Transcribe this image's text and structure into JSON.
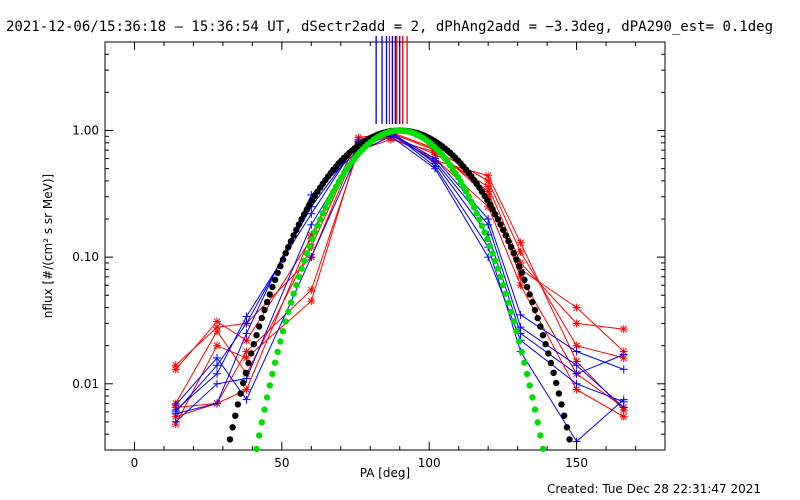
{
  "header": {
    "title": "2021-12-06/15:36:18 – 15:36:54 UT, dSectr2add = 2, dPhAng2add = −3.3deg, dPA290_est=  0.1deg"
  },
  "footer": {
    "created": "Created: Tue Dec 28 22:31:47 2021"
  },
  "chart_data": {
    "type": "line",
    "xlabel": "PA [deg]",
    "ylabel": "nflux [#/(cm² s sr MeV)]",
    "xlim": [
      -10,
      180
    ],
    "ylim": [
      0.003,
      5.0
    ],
    "yscale": "log",
    "x_ticks": [
      0,
      50,
      100,
      150
    ],
    "x_tick_labels": [
      "0",
      "50",
      "100",
      "150"
    ],
    "y_ticks": [
      0.01,
      0.1,
      1.0
    ],
    "y_tick_labels": [
      "0.01",
      "0.10",
      "1.00"
    ],
    "grid": false,
    "colors": {
      "red": "#ff0000",
      "blue": "#0000ff",
      "black": "#000000",
      "green": "#00e000"
    },
    "x_bins": [
      14,
      28,
      38,
      60,
      76,
      87,
      102,
      120,
      131,
      150,
      166
    ],
    "series": [
      {
        "color": "red",
        "marker": "asterisk",
        "values": [
          0.0065,
          0.007,
          0.009,
          0.15,
          0.85,
          0.97,
          0.72,
          0.3,
          0.08,
          0.04,
          0.018
        ]
      },
      {
        "color": "red",
        "marker": "asterisk",
        "values": [
          0.007,
          0.026,
          0.012,
          0.12,
          0.8,
          0.9,
          0.65,
          0.36,
          0.09,
          0.03,
          0.027
        ]
      },
      {
        "color": "red",
        "marker": "asterisk",
        "values": [
          0.013,
          0.031,
          0.022,
          0.14,
          0.88,
          0.95,
          0.7,
          0.4,
          0.11,
          0.02,
          0.016
        ]
      },
      {
        "color": "red",
        "marker": "asterisk",
        "values": [
          0.0055,
          0.007,
          0.018,
          0.055,
          0.7,
          0.85,
          0.68,
          0.33,
          0.07,
          0.012,
          0.0065
        ]
      },
      {
        "color": "red",
        "marker": "asterisk",
        "values": [
          0.014,
          0.028,
          0.03,
          0.1,
          0.78,
          0.88,
          0.6,
          0.25,
          0.06,
          0.009,
          0.0055
        ]
      },
      {
        "color": "red",
        "marker": "asterisk",
        "values": [
          0.0048,
          0.02,
          0.016,
          0.045,
          0.75,
          0.92,
          0.58,
          0.44,
          0.13,
          0.015,
          0.0062
        ]
      },
      {
        "color": "blue",
        "marker": "plus",
        "values": [
          0.0058,
          0.007,
          0.025,
          0.31,
          0.7,
          0.98,
          0.55,
          0.15,
          0.025,
          0.012,
          0.017
        ]
      },
      {
        "color": "blue",
        "marker": "plus",
        "values": [
          0.0062,
          0.012,
          0.034,
          0.22,
          0.82,
          0.95,
          0.6,
          0.2,
          0.035,
          0.018,
          0.013
        ]
      },
      {
        "color": "blue",
        "marker": "plus",
        "values": [
          0.005,
          0.01,
          0.011,
          0.18,
          0.74,
          0.97,
          0.52,
          0.12,
          0.018,
          0.0035,
          0.0075
        ]
      },
      {
        "color": "blue",
        "marker": "plus",
        "values": [
          0.006,
          0.014,
          0.03,
          0.25,
          0.8,
          0.93,
          0.57,
          0.18,
          0.028,
          0.014,
          0.0065
        ]
      },
      {
        "color": "blue",
        "marker": "plus",
        "values": [
          0.0068,
          0.016,
          0.0075,
          0.1,
          0.68,
          0.9,
          0.5,
          0.1,
          0.022,
          0.01,
          0.0072
        ]
      }
    ],
    "fits": [
      {
        "color": "black",
        "style": "dots",
        "function": "sin^n(PA)",
        "exponent": 9,
        "peak": 1.0
      },
      {
        "color": "green",
        "style": "dots",
        "function": "sin^n(PA)",
        "exponent": 14,
        "peak": 1.0
      }
    ],
    "top_marks": {
      "blue_x": [
        82,
        84,
        85.5,
        87.5,
        88.5,
        90
      ],
      "red_x": [
        86.5,
        89,
        91,
        92.5
      ]
    }
  }
}
